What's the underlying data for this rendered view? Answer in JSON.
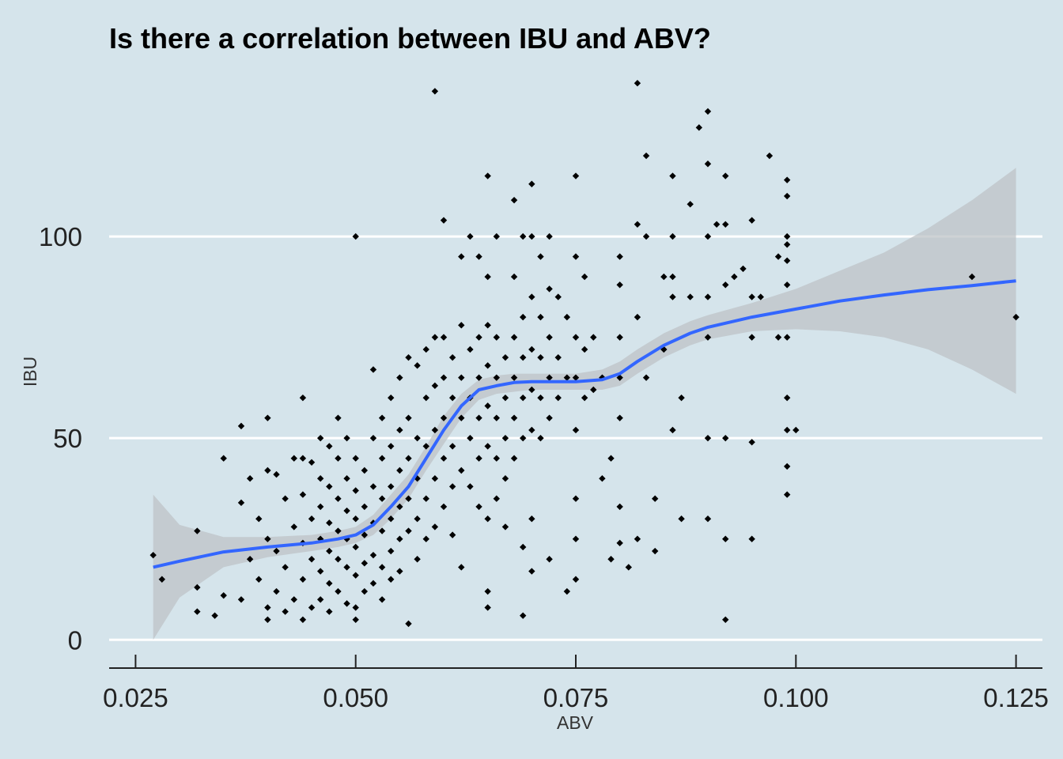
{
  "chart_data": {
    "type": "scatter",
    "title": "Is there a correlation between IBU and ABV?",
    "xlabel": "ABV",
    "ylabel": "IBU",
    "xlim": [
      0.022,
      0.128
    ],
    "ylim": [
      -7,
      140
    ],
    "x_ticks": [
      {
        "value": 0.025,
        "label": "0.025"
      },
      {
        "value": 0.05,
        "label": "0.050"
      },
      {
        "value": 0.075,
        "label": "0.075"
      },
      {
        "value": 0.1,
        "label": "0.100"
      },
      {
        "value": 0.125,
        "label": "0.125"
      }
    ],
    "y_ticks": [
      {
        "value": 0,
        "label": "0"
      },
      {
        "value": 50,
        "label": "50"
      },
      {
        "value": 100,
        "label": "100"
      }
    ],
    "grid": {
      "horizontal": true,
      "vertical": false,
      "color": "#ffffff"
    },
    "colors": {
      "background": "#d5e4eb",
      "points": "#000000",
      "smooth_line": "#3366ff",
      "confidence_band": "#bdc3c7"
    },
    "points": [
      [
        0.027,
        21
      ],
      [
        0.028,
        15
      ],
      [
        0.032,
        27
      ],
      [
        0.032,
        13
      ],
      [
        0.032,
        7
      ],
      [
        0.034,
        6
      ],
      [
        0.035,
        45
      ],
      [
        0.035,
        11
      ],
      [
        0.037,
        53
      ],
      [
        0.037,
        34
      ],
      [
        0.037,
        10
      ],
      [
        0.038,
        40
      ],
      [
        0.038,
        20
      ],
      [
        0.039,
        30
      ],
      [
        0.039,
        15
      ],
      [
        0.04,
        55
      ],
      [
        0.04,
        42
      ],
      [
        0.04,
        25
      ],
      [
        0.04,
        8
      ],
      [
        0.04,
        5
      ],
      [
        0.041,
        41
      ],
      [
        0.041,
        22
      ],
      [
        0.041,
        12
      ],
      [
        0.042,
        35
      ],
      [
        0.042,
        18
      ],
      [
        0.042,
        7
      ],
      [
        0.043,
        45
      ],
      [
        0.043,
        28
      ],
      [
        0.043,
        10
      ],
      [
        0.044,
        60
      ],
      [
        0.044,
        45
      ],
      [
        0.044,
        36
      ],
      [
        0.044,
        24
      ],
      [
        0.044,
        15
      ],
      [
        0.044,
        5
      ],
      [
        0.045,
        44
      ],
      [
        0.045,
        30
      ],
      [
        0.045,
        20
      ],
      [
        0.045,
        8
      ],
      [
        0.046,
        50
      ],
      [
        0.046,
        40
      ],
      [
        0.046,
        33
      ],
      [
        0.046,
        25
      ],
      [
        0.046,
        17
      ],
      [
        0.046,
        10
      ],
      [
        0.047,
        48
      ],
      [
        0.047,
        38
      ],
      [
        0.047,
        29
      ],
      [
        0.047,
        22
      ],
      [
        0.047,
        14
      ],
      [
        0.047,
        7
      ],
      [
        0.048,
        55
      ],
      [
        0.048,
        45
      ],
      [
        0.048,
        35
      ],
      [
        0.048,
        27
      ],
      [
        0.048,
        20
      ],
      [
        0.048,
        12
      ],
      [
        0.049,
        50
      ],
      [
        0.049,
        40
      ],
      [
        0.049,
        32
      ],
      [
        0.049,
        25
      ],
      [
        0.049,
        18
      ],
      [
        0.049,
        9
      ],
      [
        0.05,
        100
      ],
      [
        0.05,
        45
      ],
      [
        0.05,
        37
      ],
      [
        0.05,
        30
      ],
      [
        0.05,
        23
      ],
      [
        0.05,
        16
      ],
      [
        0.05,
        8
      ],
      [
        0.05,
        5
      ],
      [
        0.051,
        42
      ],
      [
        0.051,
        33
      ],
      [
        0.051,
        26
      ],
      [
        0.051,
        19
      ],
      [
        0.051,
        12
      ],
      [
        0.052,
        67
      ],
      [
        0.052,
        50
      ],
      [
        0.052,
        38
      ],
      [
        0.052,
        29
      ],
      [
        0.052,
        21
      ],
      [
        0.052,
        14
      ],
      [
        0.053,
        55
      ],
      [
        0.053,
        45
      ],
      [
        0.053,
        35
      ],
      [
        0.053,
        27
      ],
      [
        0.053,
        18
      ],
      [
        0.053,
        10
      ],
      [
        0.054,
        60
      ],
      [
        0.054,
        48
      ],
      [
        0.054,
        38
      ],
      [
        0.054,
        30
      ],
      [
        0.054,
        22
      ],
      [
        0.054,
        15
      ],
      [
        0.055,
        65
      ],
      [
        0.055,
        52
      ],
      [
        0.055,
        42
      ],
      [
        0.055,
        33
      ],
      [
        0.055,
        25
      ],
      [
        0.055,
        17
      ],
      [
        0.056,
        70
      ],
      [
        0.056,
        55
      ],
      [
        0.056,
        45
      ],
      [
        0.056,
        35
      ],
      [
        0.056,
        27
      ],
      [
        0.056,
        4
      ],
      [
        0.057,
        68
      ],
      [
        0.057,
        50
      ],
      [
        0.057,
        40
      ],
      [
        0.057,
        30
      ],
      [
        0.057,
        20
      ],
      [
        0.058,
        72
      ],
      [
        0.058,
        60
      ],
      [
        0.058,
        48
      ],
      [
        0.058,
        35
      ],
      [
        0.058,
        25
      ],
      [
        0.059,
        136
      ],
      [
        0.059,
        75
      ],
      [
        0.059,
        63
      ],
      [
        0.059,
        52
      ],
      [
        0.059,
        40
      ],
      [
        0.059,
        28
      ],
      [
        0.06,
        104
      ],
      [
        0.06,
        75
      ],
      [
        0.06,
        65
      ],
      [
        0.06,
        55
      ],
      [
        0.06,
        45
      ],
      [
        0.06,
        33
      ],
      [
        0.061,
        70
      ],
      [
        0.061,
        60
      ],
      [
        0.061,
        48
      ],
      [
        0.061,
        38
      ],
      [
        0.061,
        26
      ],
      [
        0.062,
        95
      ],
      [
        0.062,
        78
      ],
      [
        0.062,
        65
      ],
      [
        0.062,
        55
      ],
      [
        0.062,
        42
      ],
      [
        0.062,
        18
      ],
      [
        0.063,
        100
      ],
      [
        0.063,
        72
      ],
      [
        0.063,
        60
      ],
      [
        0.063,
        50
      ],
      [
        0.063,
        38
      ],
      [
        0.064,
        95
      ],
      [
        0.064,
        75
      ],
      [
        0.064,
        65
      ],
      [
        0.064,
        55
      ],
      [
        0.064,
        45
      ],
      [
        0.064,
        33
      ],
      [
        0.065,
        115
      ],
      [
        0.065,
        90
      ],
      [
        0.065,
        78
      ],
      [
        0.065,
        68
      ],
      [
        0.065,
        58
      ],
      [
        0.065,
        48
      ],
      [
        0.065,
        30
      ],
      [
        0.065,
        12
      ],
      [
        0.065,
        8
      ],
      [
        0.066,
        100
      ],
      [
        0.066,
        75
      ],
      [
        0.066,
        65
      ],
      [
        0.066,
        55
      ],
      [
        0.066,
        45
      ],
      [
        0.066,
        35
      ],
      [
        0.067,
        70
      ],
      [
        0.067,
        60
      ],
      [
        0.067,
        50
      ],
      [
        0.067,
        40
      ],
      [
        0.067,
        28
      ],
      [
        0.068,
        109
      ],
      [
        0.068,
        90
      ],
      [
        0.068,
        75
      ],
      [
        0.068,
        65
      ],
      [
        0.068,
        55
      ],
      [
        0.068,
        45
      ],
      [
        0.069,
        100
      ],
      [
        0.069,
        80
      ],
      [
        0.069,
        70
      ],
      [
        0.069,
        60
      ],
      [
        0.069,
        50
      ],
      [
        0.069,
        23
      ],
      [
        0.069,
        6
      ],
      [
        0.07,
        113
      ],
      [
        0.07,
        100
      ],
      [
        0.07,
        85
      ],
      [
        0.07,
        72
      ],
      [
        0.07,
        62
      ],
      [
        0.07,
        52
      ],
      [
        0.07,
        30
      ],
      [
        0.07,
        17
      ],
      [
        0.071,
        95
      ],
      [
        0.071,
        80
      ],
      [
        0.071,
        70
      ],
      [
        0.071,
        60
      ],
      [
        0.071,
        50
      ],
      [
        0.072,
        100
      ],
      [
        0.072,
        87
      ],
      [
        0.072,
        75
      ],
      [
        0.072,
        65
      ],
      [
        0.072,
        55
      ],
      [
        0.072,
        20
      ],
      [
        0.073,
        85
      ],
      [
        0.073,
        70
      ],
      [
        0.073,
        60
      ],
      [
        0.074,
        80
      ],
      [
        0.074,
        65
      ],
      [
        0.074,
        12
      ],
      [
        0.075,
        115
      ],
      [
        0.075,
        95
      ],
      [
        0.075,
        75
      ],
      [
        0.075,
        65
      ],
      [
        0.075,
        52
      ],
      [
        0.075,
        35
      ],
      [
        0.075,
        25
      ],
      [
        0.075,
        15
      ],
      [
        0.076,
        90
      ],
      [
        0.076,
        72
      ],
      [
        0.076,
        60
      ],
      [
        0.077,
        75
      ],
      [
        0.077,
        62
      ],
      [
        0.078,
        65
      ],
      [
        0.078,
        40
      ],
      [
        0.079,
        45
      ],
      [
        0.079,
        20
      ],
      [
        0.08,
        95
      ],
      [
        0.08,
        88
      ],
      [
        0.08,
        75
      ],
      [
        0.08,
        65
      ],
      [
        0.08,
        55
      ],
      [
        0.08,
        33
      ],
      [
        0.08,
        24
      ],
      [
        0.081,
        18
      ],
      [
        0.082,
        138
      ],
      [
        0.082,
        103
      ],
      [
        0.082,
        80
      ],
      [
        0.082,
        25
      ],
      [
        0.083,
        120
      ],
      [
        0.083,
        100
      ],
      [
        0.083,
        65
      ],
      [
        0.084,
        22
      ],
      [
        0.084,
        35
      ],
      [
        0.085,
        90
      ],
      [
        0.085,
        72
      ],
      [
        0.086,
        115
      ],
      [
        0.086,
        100
      ],
      [
        0.086,
        90
      ],
      [
        0.086,
        85
      ],
      [
        0.086,
        52
      ],
      [
        0.087,
        60
      ],
      [
        0.087,
        30
      ],
      [
        0.088,
        85
      ],
      [
        0.088,
        108
      ],
      [
        0.089,
        127
      ],
      [
        0.09,
        131
      ],
      [
        0.09,
        118
      ],
      [
        0.09,
        100
      ],
      [
        0.09,
        85
      ],
      [
        0.09,
        75
      ],
      [
        0.09,
        50
      ],
      [
        0.09,
        30
      ],
      [
        0.091,
        103
      ],
      [
        0.092,
        115
      ],
      [
        0.092,
        103
      ],
      [
        0.092,
        88
      ],
      [
        0.092,
        50
      ],
      [
        0.092,
        25
      ],
      [
        0.092,
        5
      ],
      [
        0.093,
        90
      ],
      [
        0.094,
        92
      ],
      [
        0.095,
        104
      ],
      [
        0.095,
        85
      ],
      [
        0.095,
        75
      ],
      [
        0.095,
        49
      ],
      [
        0.095,
        25
      ],
      [
        0.096,
        85
      ],
      [
        0.097,
        120
      ],
      [
        0.098,
        95
      ],
      [
        0.098,
        75
      ],
      [
        0.099,
        114
      ],
      [
        0.099,
        110
      ],
      [
        0.099,
        100
      ],
      [
        0.099,
        98
      ],
      [
        0.099,
        94
      ],
      [
        0.099,
        88
      ],
      [
        0.099,
        75
      ],
      [
        0.099,
        60
      ],
      [
        0.099,
        52
      ],
      [
        0.099,
        43
      ],
      [
        0.099,
        36
      ],
      [
        0.1,
        52
      ],
      [
        0.12,
        90
      ],
      [
        0.125,
        80
      ]
    ],
    "smooth_line": {
      "x": [
        0.027,
        0.03,
        0.035,
        0.04,
        0.045,
        0.048,
        0.05,
        0.052,
        0.054,
        0.056,
        0.058,
        0.06,
        0.062,
        0.064,
        0.066,
        0.068,
        0.07,
        0.072,
        0.075,
        0.078,
        0.08,
        0.082,
        0.085,
        0.088,
        0.09,
        0.095,
        0.1,
        0.105,
        0.11,
        0.115,
        0.12,
        0.125
      ],
      "y": [
        18,
        19.5,
        21.8,
        23,
        24,
        25,
        26,
        28.5,
        33,
        38,
        45,
        52,
        58,
        62,
        63,
        63.8,
        64,
        64,
        64,
        64.5,
        66,
        69,
        73,
        76,
        77.5,
        80,
        82,
        84,
        85.5,
        86.8,
        87.8,
        89
      ],
      "lower": [
        0,
        10.5,
        18,
        20.5,
        22,
        23,
        24,
        26,
        30,
        35,
        42,
        48.5,
        55,
        59.5,
        61,
        61.5,
        62,
        62,
        62,
        62,
        63,
        66,
        70,
        73,
        74.5,
        76.5,
        77,
        76.5,
        75,
        72,
        67,
        61
      ],
      "upper": [
        36,
        28.5,
        25.5,
        25.5,
        26,
        27,
        28,
        31,
        36,
        41,
        48,
        55.5,
        61,
        64.5,
        65.5,
        66,
        66,
        66,
        66,
        67,
        69,
        72,
        76,
        79,
        80.5,
        83.5,
        87,
        91.5,
        96,
        102,
        109,
        117
      ]
    }
  }
}
